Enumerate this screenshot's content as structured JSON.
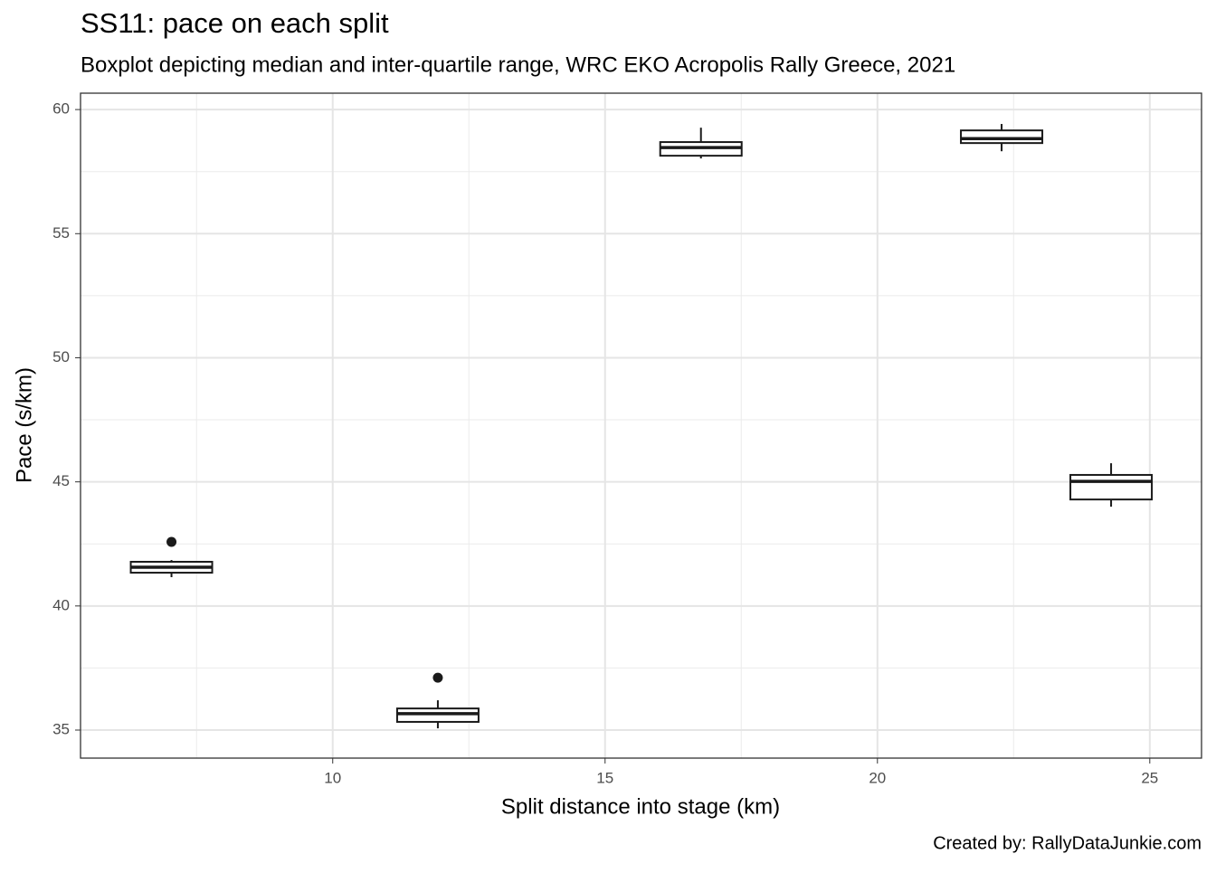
{
  "chart_data": {
    "type": "boxplot",
    "title": "SS11: pace on each split",
    "subtitle": "Boxplot depicting median and inter-quartile range, WRC EKO Acropolis Rally Greece, 2021",
    "x_label": "Split distance into stage (km)",
    "y_label": "Pace (s/km)",
    "caption": "Created by: RallyDataJunkie.com",
    "xlim": [
      5.37,
      25.95
    ],
    "xticks": [
      10,
      15,
      20,
      25
    ],
    "x_minor_ticks": [
      7.5,
      12.5,
      17.5,
      22.5
    ],
    "ylim": [
      33.87,
      60.66
    ],
    "yticks": [
      35,
      40,
      45,
      50,
      55,
      60
    ],
    "y_minor_ticks": [
      37.5,
      42.5,
      47.5,
      52.5,
      57.5
    ],
    "grid": true,
    "color": "#1a1a1a",
    "boxes": [
      {
        "x": 7.04,
        "low": 41.16,
        "q1": 41.34,
        "median": 41.56,
        "q3": 41.78,
        "high": 41.85,
        "outliers": [
          42.58
        ]
      },
      {
        "x": 11.93,
        "low": 35.07,
        "q1": 35.33,
        "median": 35.66,
        "q3": 35.87,
        "high": 36.2,
        "outliers": [
          37.11
        ]
      },
      {
        "x": 16.76,
        "low": 58.03,
        "q1": 58.14,
        "median": 58.47,
        "q3": 58.69,
        "high": 59.27,
        "outliers": []
      },
      {
        "x": 22.28,
        "low": 58.32,
        "q1": 58.65,
        "median": 58.83,
        "q3": 59.16,
        "high": 59.42,
        "outliers": []
      },
      {
        "x": 24.29,
        "low": 44.0,
        "q1": 44.29,
        "median": 45.02,
        "q3": 45.28,
        "high": 45.75,
        "outliers": []
      }
    ]
  }
}
